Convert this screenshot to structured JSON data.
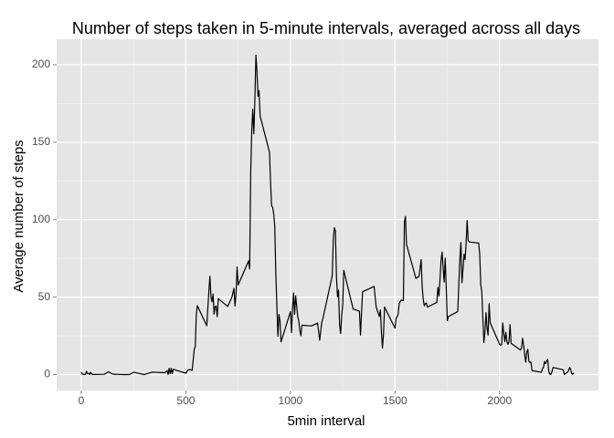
{
  "chart_data": {
    "type": "line",
    "title": "Number of steps taken in 5-minute intervals, averaged across all days",
    "x_label": "5min interval",
    "y_label": "Average number of steps",
    "x": [
      0,
      5,
      10,
      15,
      20,
      25,
      30,
      35,
      40,
      45,
      50,
      55,
      110,
      130,
      150,
      200,
      230,
      250,
      300,
      340,
      400,
      410,
      415,
      420,
      425,
      430,
      435,
      440,
      450,
      500,
      510,
      520,
      530,
      540,
      545,
      550,
      555,
      600,
      610,
      615,
      620,
      625,
      630,
      635,
      640,
      645,
      650,
      655,
      700,
      720,
      730,
      735,
      740,
      745,
      750,
      800,
      805,
      810,
      815,
      820,
      825,
      830,
      835,
      840,
      845,
      850,
      855,
      900,
      905,
      910,
      915,
      920,
      925,
      930,
      935,
      940,
      945,
      950,
      955,
      1000,
      1005,
      1010,
      1015,
      1020,
      1025,
      1030,
      1035,
      1040,
      1045,
      1050,
      1055,
      1100,
      1130,
      1140,
      1150,
      1155,
      1200,
      1205,
      1210,
      1215,
      1220,
      1225,
      1230,
      1235,
      1240,
      1245,
      1250,
      1255,
      1300,
      1330,
      1335,
      1340,
      1345,
      1400,
      1410,
      1425,
      1430,
      1435,
      1440,
      1445,
      1450,
      1500,
      1505,
      1515,
      1520,
      1530,
      1540,
      1545,
      1550,
      1555,
      1600,
      1615,
      1625,
      1630,
      1635,
      1640,
      1645,
      1650,
      1655,
      1700,
      1705,
      1710,
      1715,
      1720,
      1725,
      1730,
      1735,
      1740,
      1745,
      1750,
      1755,
      1800,
      1805,
      1810,
      1815,
      1820,
      1825,
      1830,
      1835,
      1840,
      1845,
      1850,
      1855,
      1900,
      1905,
      1910,
      1915,
      1920,
      1925,
      1930,
      1935,
      1940,
      1945,
      1950,
      1955,
      2000,
      2005,
      2010,
      2015,
      2020,
      2025,
      2030,
      2035,
      2040,
      2045,
      2050,
      2055,
      2100,
      2105,
      2110,
      2115,
      2120,
      2125,
      2130,
      2135,
      2140,
      2145,
      2150,
      2155,
      2200,
      2205,
      2210,
      2215,
      2220,
      2225,
      2230,
      2235,
      2240,
      2245,
      2250,
      2255,
      2300,
      2305,
      2310,
      2315,
      2320,
      2325,
      2330,
      2335,
      2340,
      2345,
      2350,
      2355
    ],
    "series": [
      {
        "name": "steps",
        "color": "#000000",
        "values": [
          1.7,
          0.3,
          0.1,
          0.2,
          0.1,
          2.1,
          0.5,
          0.9,
          0,
          1.5,
          0.3,
          0.1,
          0.2,
          1.8,
          0.3,
          0,
          0,
          1.5,
          0,
          1.6,
          1.2,
          2.6,
          0,
          4.1,
          0.5,
          4.1,
          0.7,
          3.5,
          3.0,
          0.9,
          3.0,
          3.3,
          2.7,
          16,
          18.3,
          39,
          44.5,
          31.5,
          53.8,
          63.5,
          50,
          47,
          52,
          39,
          44,
          44.2,
          37.4,
          49,
          44,
          49.9,
          55.7,
          44.3,
          52.3,
          69.5,
          57.8,
          73.4,
          68.2,
          129.4,
          157.5,
          171.2,
          155.4,
          177.3,
          206.2,
          195.9,
          179.6,
          183.4,
          167,
          143.5,
          124,
          109,
          108,
          103.7,
          96,
          66.2,
          45.2,
          24.8,
          38.8,
          35,
          21.1,
          40.6,
          27,
          42.4,
          52.7,
          38.9,
          50.8,
          44.3,
          37.4,
          34.7,
          28.3,
          25.1,
          31.9,
          31.4,
          33.2,
          22.2,
          34,
          36,
          63.9,
          87.6,
          94.8,
          92.8,
          63.4,
          50.2,
          54.5,
          32.4,
          26.5,
          37.7,
          45.1,
          67.3,
          42.3,
          40.9,
          25.5,
          39.9,
          53.5,
          56.9,
          43.6,
          37.5,
          41.8,
          27.5,
          17.1,
          26.1,
          43.6,
          30,
          36.1,
          38.8,
          46,
          48.1,
          47.8,
          98.7,
          102.1,
          84,
          62.1,
          63.5,
          74.2,
          56.6,
          48.5,
          44.4,
          45.8,
          46.2,
          43.6,
          46.6,
          56.3,
          50.7,
          61.2,
          73.4,
          79.1,
          68.9,
          59.7,
          75.1,
          56.5,
          34.8,
          37.5,
          40.7,
          58,
          74.7,
          85.3,
          59.3,
          67.8,
          77.7,
          74.2,
          85.3,
          99.5,
          86.6,
          85.6,
          84.9,
          77.8,
          58,
          53.4,
          36.3,
          20.7,
          27.4,
          40,
          30.2,
          25.5,
          45.7,
          33.5,
          19.6,
          19,
          19.3,
          33.3,
          26.8,
          21.2,
          27.3,
          21.3,
          19.5,
          21.3,
          32.3,
          20.2,
          15.9,
          17.2,
          23.5,
          19.2,
          12.5,
          8,
          14.7,
          16.3,
          8.7,
          7.8,
          8.1,
          2.6,
          1.5,
          3.7,
          4.8,
          8.5,
          7.1,
          8.7,
          9.8,
          2.2,
          0.3,
          0.1,
          1.6,
          4.6,
          3.3,
          2.8,
          0,
          0.8,
          1,
          1.6,
          2.6,
          4.7,
          3.3,
          0.6,
          0.2,
          1.1
        ]
      }
    ],
    "xlim": [
      -117.75,
      2472.75
    ],
    "ylim": [
      -10.3,
      216.5
    ],
    "xticks": [
      0,
      500,
      1000,
      1500,
      2000
    ],
    "yticks": [
      0,
      50,
      100,
      150,
      200
    ],
    "grid": true,
    "minor_grid": true
  }
}
